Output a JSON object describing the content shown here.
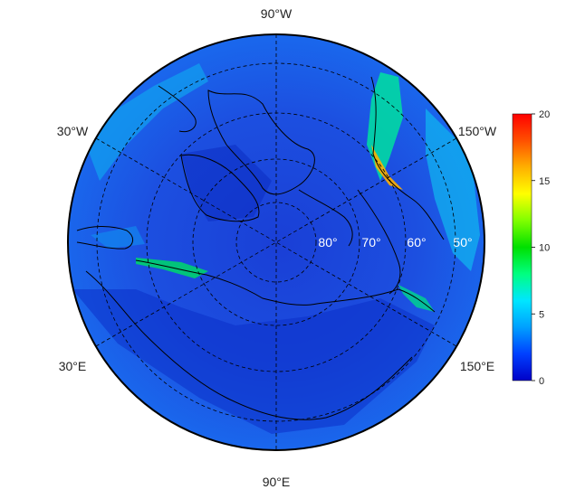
{
  "map": {
    "projection": "polar stereographic (north)",
    "longitude_labels": [
      "90°W",
      "30°W",
      "150°W",
      "30°E",
      "150°E",
      "90°E"
    ],
    "latitude_labels": [
      "80°",
      "70°",
      "60°",
      "50°"
    ],
    "graticule": "dashed",
    "colorbar": {
      "ticks": [
        "0",
        "5",
        "10",
        "15",
        "20"
      ],
      "min": 0,
      "max": 20,
      "colors": [
        "#0000c8",
        "#0040ff",
        "#00a0ff",
        "#00e6ff",
        "#00ff80",
        "#00e000",
        "#80ff00",
        "#ffff00",
        "#ffb000",
        "#ff5000",
        "#ff0000"
      ]
    },
    "legend_placement": "right"
  }
}
